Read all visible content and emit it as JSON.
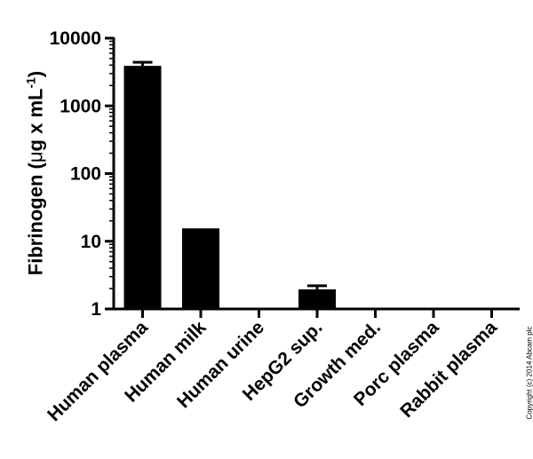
{
  "chart_data": {
    "type": "bar",
    "categories": [
      "Human plasma",
      "Human milk",
      "Human urine",
      "HepG2 sup.",
      "Growth med.",
      "Porc plasma",
      "Rabbit plasma"
    ],
    "values": [
      3900,
      15.5,
      1,
      1.95,
      1,
      1,
      1
    ],
    "error_upper": [
      4400,
      null,
      null,
      2.2,
      null,
      null,
      null
    ],
    "xlabel": "",
    "ylabel_prefix": "Fibrinogen (",
    "ylabel_unit_symbol": "μ",
    "ylabel_mid": "g x mL",
    "ylabel_exp": "-1",
    "ylabel_suffix": ")",
    "yscale": "log",
    "ylim": [
      1,
      10000
    ],
    "y_ticks": [
      "1",
      "10",
      "100",
      "1000",
      "10000"
    ],
    "bar_color": "#000000",
    "grid": false,
    "legend": "none"
  },
  "copyright": "Copyright (c) 2014 Abcam plc"
}
